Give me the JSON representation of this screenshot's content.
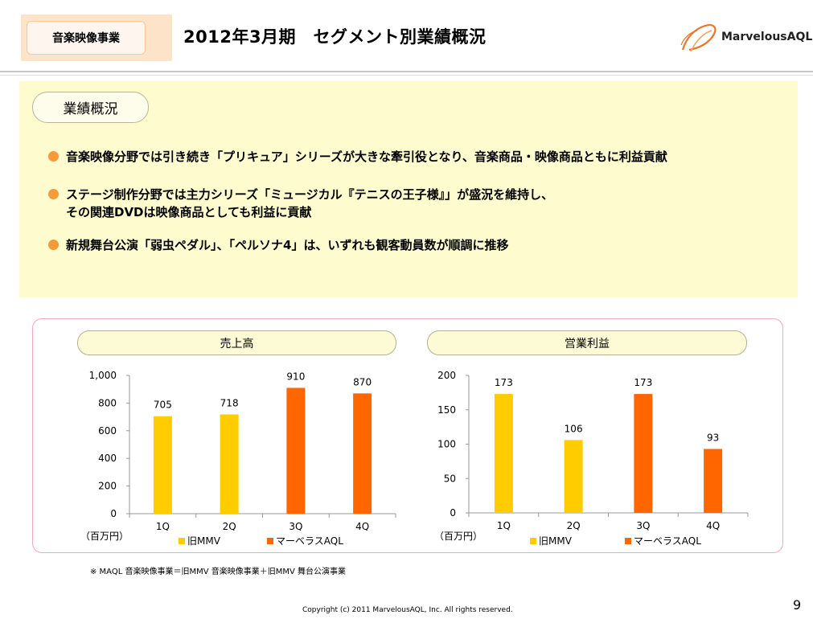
{
  "header": {
    "segment_label": "音楽映像事業",
    "title": "2012年3月期　セグメント別業績概況",
    "logo_text": "MarvelousAQL"
  },
  "summary": {
    "label": "業績概況",
    "bullets": [
      {
        "lines": [
          "音楽映像分野では引き続き「プリキュア」シリーズが大きな牽引役となり、音楽商品・映像商品ともに利益貢献"
        ]
      },
      {
        "lines": [
          "ステージ制作分野では主力シリーズ「ミュージカル『テニスの王子様』」が盛況を維持し、",
          "その関連DVDは映像商品としても利益に貢献"
        ]
      },
      {
        "lines": [
          "新規舞台公演「弱虫ペダル」、「ペルソナ4」は、いずれも観客動員数が順調に推移"
        ]
      }
    ]
  },
  "colors": {
    "old_mmv": "#ffcc00",
    "marvelous_aql": "#ff6600",
    "bullet": "#f49b3a"
  },
  "chart_data": [
    {
      "type": "bar",
      "title": "売上高",
      "unit": "（百万円）",
      "categories": [
        "1Q",
        "2Q",
        "3Q",
        "4Q"
      ],
      "values": [
        705,
        718,
        910,
        870
      ],
      "bar_series": [
        "旧MMV",
        "旧MMV",
        "マーベラスAQL",
        "マーベラスAQL"
      ],
      "series": [
        {
          "name": "旧MMV"
        },
        {
          "name": "マーベラスAQL"
        }
      ],
      "ylim": [
        0,
        1000
      ],
      "yticks": [
        0,
        200,
        400,
        600,
        800,
        1000
      ],
      "ytick_labels": [
        "0",
        "200",
        "400",
        "600",
        "800",
        "1,000"
      ],
      "grid": false,
      "legend_position": "bottom"
    },
    {
      "type": "bar",
      "title": "営業利益",
      "unit": "（百万円）",
      "categories": [
        "1Q",
        "2Q",
        "3Q",
        "4Q"
      ],
      "values": [
        173,
        106,
        173,
        93
      ],
      "bar_series": [
        "旧MMV",
        "旧MMV",
        "マーベラスAQL",
        "マーベラスAQL"
      ],
      "series": [
        {
          "name": "旧MMV"
        },
        {
          "name": "マーベラスAQL"
        }
      ],
      "ylim": [
        0,
        200
      ],
      "yticks": [
        0,
        50,
        100,
        150,
        200
      ],
      "ytick_labels": [
        "0",
        "50",
        "100",
        "150",
        "200"
      ],
      "grid": false,
      "legend_position": "bottom"
    }
  ],
  "footer": {
    "note": "※ MAQL 音楽映像事業＝旧MMV 音楽映像事業＋旧MMV 舞台公演事業",
    "copyright": "Copyright (c) 2011 MarvelousAQL, Inc. All rights reserved.",
    "page_number": "9"
  }
}
